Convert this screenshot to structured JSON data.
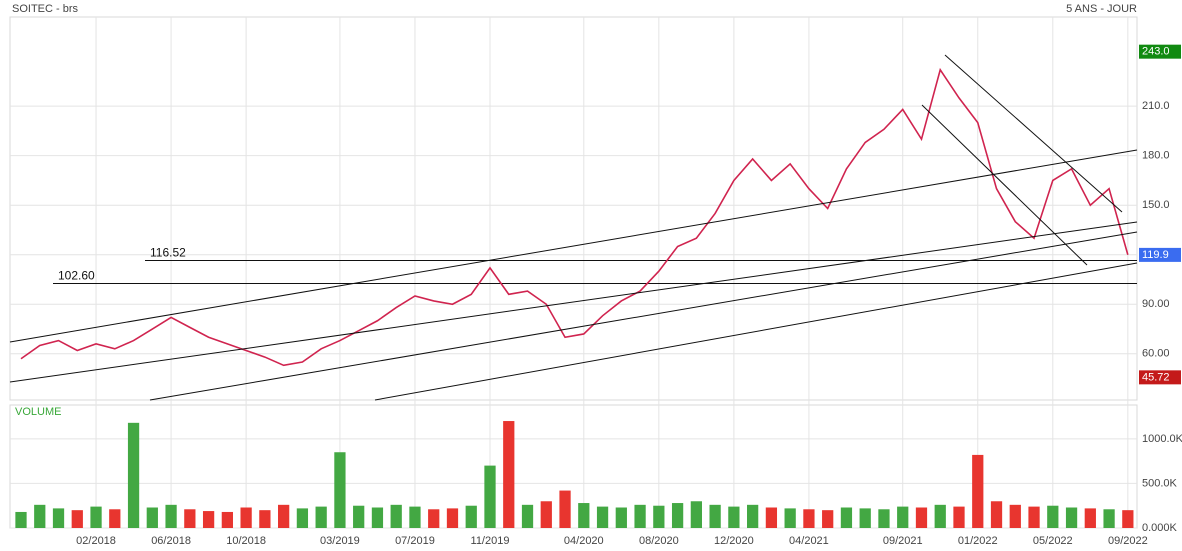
{
  "chart_data": [
    {
      "type": "line",
      "title": "SOITEC - brs",
      "subtitle": "5 ANS - JOUR",
      "color": "#d0244f",
      "x": [
        "10/2017",
        "11/2017",
        "12/2017",
        "01/2018",
        "02/2018",
        "03/2018",
        "04/2018",
        "05/2018",
        "06/2018",
        "07/2018",
        "08/2018",
        "09/2018",
        "10/2018",
        "11/2018",
        "12/2018",
        "01/2019",
        "02/2019",
        "03/2019",
        "04/2019",
        "05/2019",
        "06/2019",
        "07/2019",
        "08/2019",
        "09/2019",
        "10/2019",
        "11/2019",
        "12/2019",
        "01/2020",
        "02/2020",
        "03/2020",
        "04/2020",
        "05/2020",
        "06/2020",
        "07/2020",
        "08/2020",
        "09/2020",
        "10/2020",
        "11/2020",
        "12/2020",
        "01/2021",
        "02/2021",
        "03/2021",
        "04/2021",
        "05/2021",
        "06/2021",
        "07/2021",
        "08/2021",
        "09/2021",
        "10/2021",
        "11/2021",
        "12/2021",
        "01/2022",
        "02/2022",
        "03/2022",
        "04/2022",
        "05/2022",
        "06/2022",
        "07/2022",
        "08/2022",
        "09/2022"
      ],
      "values": [
        57,
        65,
        68,
        62,
        66,
        63,
        68,
        75,
        82,
        76,
        70,
        66,
        62,
        58,
        53,
        55,
        63,
        68,
        74,
        80,
        88,
        95,
        92,
        90,
        96,
        112,
        96,
        98,
        90,
        70,
        72,
        83,
        92,
        98,
        110,
        125,
        130,
        145,
        165,
        178,
        165,
        175,
        160,
        148,
        172,
        188,
        196,
        208,
        190,
        232,
        215,
        200,
        160,
        140,
        130,
        165,
        172,
        150,
        160,
        120
      ],
      "ylim": [
        32,
        264
      ],
      "yticks": [
        {
          "value": 60,
          "label": "60.00"
        },
        {
          "value": 90,
          "label": "90.00"
        },
        {
          "value": 120,
          "label": "120.0"
        },
        {
          "value": 150,
          "label": "150.0"
        },
        {
          "value": 180,
          "label": "180.0"
        },
        {
          "value": 210,
          "label": "210.0"
        }
      ],
      "xticks": [
        "02/2018",
        "06/2018",
        "10/2018",
        "03/2019",
        "07/2019",
        "11/2019",
        "04/2020",
        "08/2020",
        "12/2020",
        "04/2021",
        "09/2021",
        "01/2022",
        "05/2022",
        "09/2022"
      ],
      "levels": [
        {
          "value": 116.52,
          "label": "116.52"
        },
        {
          "value": 102.6,
          "label": "102.60"
        }
      ],
      "price_labels": [
        {
          "value": 243.0,
          "label": "243.0",
          "color": "#118a11"
        },
        {
          "value": 119.9,
          "label": "119.9",
          "color": "#3a6cf0"
        },
        {
          "value": 45.72,
          "label": "45.72",
          "color": "#c41a1a"
        }
      ],
      "grid": true
    },
    {
      "type": "bar",
      "title": "VOLUME",
      "up_color": "#43a843",
      "down_color": "#e8352f",
      "values": [
        180,
        260,
        220,
        200,
        240,
        210,
        1180,
        230,
        260,
        210,
        190,
        180,
        230,
        200,
        260,
        220,
        240,
        850,
        250,
        230,
        260,
        240,
        210,
        220,
        250,
        700,
        1200,
        260,
        300,
        420,
        280,
        240,
        230,
        260,
        250,
        280,
        300,
        260,
        240,
        260,
        230,
        220,
        210,
        200,
        230,
        220,
        210,
        240,
        230,
        260,
        240,
        820,
        300,
        260,
        240,
        250,
        230,
        220,
        210,
        200
      ],
      "ylim": [
        0,
        1380
      ],
      "yticks": [
        {
          "value": 0,
          "label": "0.000K"
        },
        {
          "value": 500,
          "label": "500.0K"
        },
        {
          "value": 1000,
          "label": "1000.0K"
        }
      ]
    }
  ]
}
